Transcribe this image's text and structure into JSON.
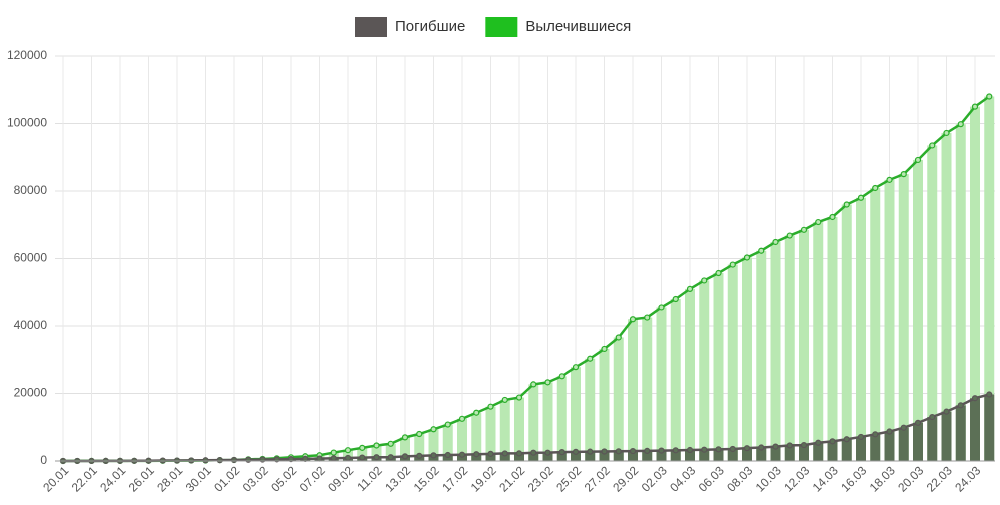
{
  "chart_data": {
    "type": "bar-line",
    "categories": [
      "20.01",
      null,
      "22.01",
      null,
      "24.01",
      null,
      "26.01",
      null,
      "28.01",
      null,
      "30.01",
      null,
      "01.02",
      null,
      "03.02",
      null,
      "05.02",
      null,
      "07.02",
      null,
      "09.02",
      null,
      "11.02",
      null,
      "13.02",
      null,
      "15.02",
      null,
      "17.02",
      null,
      "19.02",
      null,
      "21.02",
      null,
      "23.02",
      null,
      "25.02",
      null,
      "27.02",
      null,
      "29.02",
      null,
      "02.03",
      null,
      "04.03",
      null,
      "06.03",
      null,
      "08.03",
      null,
      "10.03",
      null,
      "12.03",
      null,
      "14.03",
      null,
      "16.03",
      null,
      "18.03",
      null,
      "20.03",
      null,
      "22.03",
      null,
      "24.03",
      null
    ],
    "series": [
      {
        "name": "Погибшие",
        "color": "#5b5656",
        "bar_color": "#5c7056",
        "values": [
          6,
          17,
          18,
          26,
          42,
          56,
          82,
          131,
          133,
          171,
          213,
          259,
          304,
          362,
          426,
          492,
          564,
          634,
          719,
          806,
          906,
          1013,
          1113,
          1118,
          1371,
          1523,
          1666,
          1770,
          1868,
          2007,
          2122,
          2247,
          2251,
          2458,
          2469,
          2629,
          2708,
          2770,
          2814,
          2872,
          2941,
          2996,
          3085,
          3160,
          3254,
          3348,
          3460,
          3558,
          3803,
          3996,
          4262,
          4615,
          4720,
          5404,
          5819,
          6440,
          7126,
          7905,
          8733,
          9867,
          11299,
          13015,
          14623,
          16497,
          18600,
          19700
        ]
      },
      {
        "name": "Вылечившиеся",
        "color": "#1fbf1f",
        "bar_color": "#b9e8b2",
        "line_color": "#2bad2b",
        "values": [
          0,
          20,
          28,
          30,
          36,
          39,
          52,
          61,
          107,
          126,
          143,
          250,
          300,
          500,
          600,
          800,
          1100,
          1400,
          1700,
          2500,
          3200,
          3900,
          4600,
          5100,
          7000,
          8000,
          9400,
          10800,
          12500,
          14300,
          16100,
          18100,
          18800,
          22700,
          23300,
          25100,
          27800,
          30300,
          33200,
          36600,
          42000,
          42500,
          45500,
          48000,
          51000,
          53500,
          55700,
          58200,
          60300,
          62300,
          64900,
          66800,
          68500,
          70800,
          72300,
          76000,
          78000,
          80900,
          83300,
          85000,
          89200,
          93500,
          97200,
          99800,
          105000,
          108000
        ]
      }
    ],
    "ylim": [
      0,
      120000
    ],
    "yticks": [
      0,
      20000,
      40000,
      60000,
      80000,
      100000,
      120000
    ],
    "grid": true
  }
}
